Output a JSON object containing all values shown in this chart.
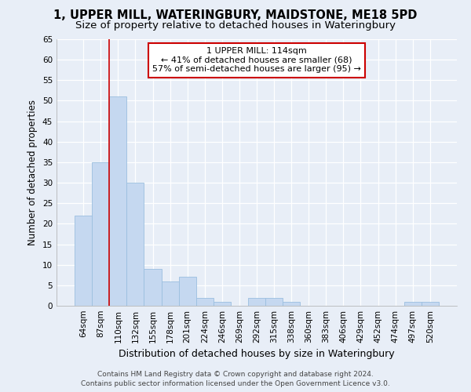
{
  "title1": "1, UPPER MILL, WATERINGBURY, MAIDSTONE, ME18 5PD",
  "title2": "Size of property relative to detached houses in Wateringbury",
  "xlabel": "Distribution of detached houses by size in Wateringbury",
  "ylabel": "Number of detached properties",
  "categories": [
    "64sqm",
    "87sqm",
    "110sqm",
    "132sqm",
    "155sqm",
    "178sqm",
    "201sqm",
    "224sqm",
    "246sqm",
    "269sqm",
    "292sqm",
    "315sqm",
    "338sqm",
    "360sqm",
    "383sqm",
    "406sqm",
    "429sqm",
    "452sqm",
    "474sqm",
    "497sqm",
    "520sqm"
  ],
  "values": [
    22,
    35,
    51,
    30,
    9,
    6,
    7,
    2,
    1,
    0,
    2,
    2,
    1,
    0,
    0,
    0,
    0,
    0,
    0,
    1,
    1
  ],
  "bar_color": "#c5d8f0",
  "bar_edge_color": "#9bbfdf",
  "highlight_index": 2,
  "highlight_color": "#cc0000",
  "ylim": [
    0,
    65
  ],
  "yticks": [
    0,
    5,
    10,
    15,
    20,
    25,
    30,
    35,
    40,
    45,
    50,
    55,
    60,
    65
  ],
  "annotation_text": "1 UPPER MILL: 114sqm\n← 41% of detached houses are smaller (68)\n57% of semi-detached houses are larger (95) →",
  "annotation_box_color": "#ffffff",
  "annotation_border_color": "#cc0000",
  "footer1": "Contains HM Land Registry data © Crown copyright and database right 2024.",
  "footer2": "Contains public sector information licensed under the Open Government Licence v3.0.",
  "background_color": "#e8eef7",
  "grid_color": "#ffffff",
  "title1_fontsize": 10.5,
  "title2_fontsize": 9.5,
  "xlabel_fontsize": 9,
  "ylabel_fontsize": 8.5,
  "tick_fontsize": 7.5,
  "annot_fontsize": 8,
  "footer_fontsize": 6.5
}
